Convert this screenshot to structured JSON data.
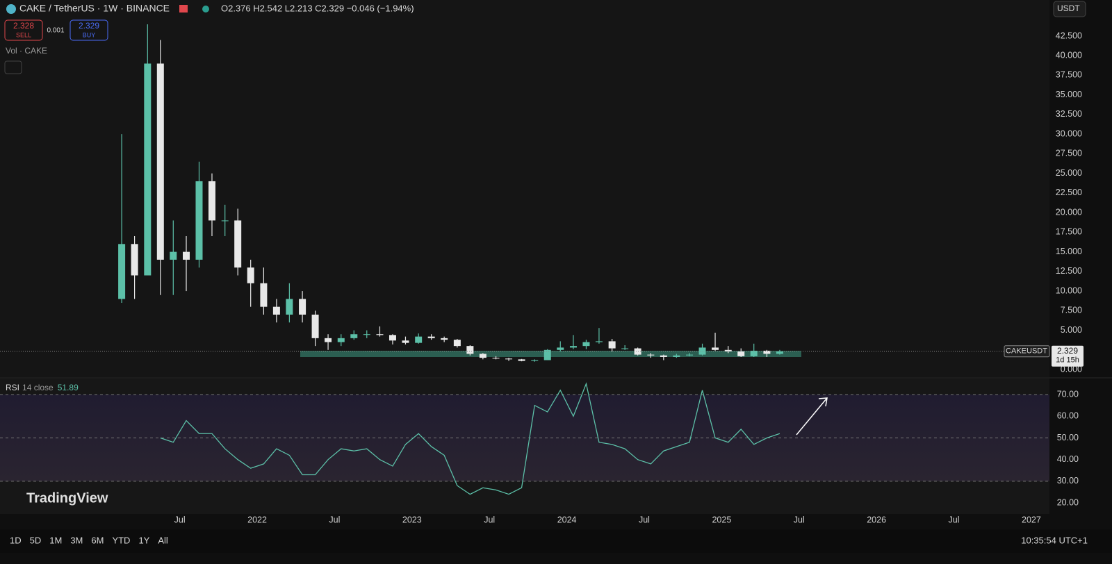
{
  "header": {
    "symbol": "CAKE / TetherUS · 1W · BINANCE",
    "ohlc": "O2.376 H2.542 L2.213 C2.329 −0.046 (−1.94%)",
    "sell_price": "2.328",
    "sell": "SELL",
    "spread": "0.001",
    "buy_price": "2.329",
    "buy": "BUY",
    "volume_label": "Vol · CAKE",
    "currency": "USDT"
  },
  "watermark": "TradingView",
  "toolbar": {
    "ranges": [
      "1D",
      "5D",
      "1M",
      "3M",
      "6M",
      "YTD",
      "1Y",
      "All"
    ],
    "clock": "10:35:54 UTC+1"
  },
  "chart_data": [
    {
      "type": "candlestick",
      "up_color": "#5cc0a8",
      "down_color": "#e8e8e8",
      "x": [
        2021.125,
        2021.208,
        2021.292,
        2021.375,
        2021.458,
        2021.542,
        2021.625,
        2021.708,
        2021.792,
        2021.875,
        2021.958,
        2022.042,
        2022.125,
        2022.208,
        2022.292,
        2022.375,
        2022.458,
        2022.542,
        2022.625,
        2022.708,
        2022.792,
        2022.875,
        2022.958,
        2023.042,
        2023.125,
        2023.208,
        2023.292,
        2023.375,
        2023.458,
        2023.542,
        2023.625,
        2023.708,
        2023.792,
        2023.875,
        2023.958,
        2024.042,
        2024.125,
        2024.208,
        2024.292,
        2024.375,
        2024.458,
        2024.542,
        2024.625,
        2024.708,
        2024.792,
        2024.875,
        2024.958,
        2025.042,
        2025.125,
        2025.208,
        2025.292,
        2025.375
      ],
      "open": [
        9,
        16,
        12,
        39,
        14,
        15,
        14,
        24,
        19,
        19,
        13,
        11,
        8,
        7,
        9,
        7,
        4,
        3.5,
        4,
        4.5,
        4.5,
        4.4,
        3.7,
        3.4,
        4.2,
        4.0,
        3.8,
        3.0,
        2.0,
        1.5,
        1.4,
        1.3,
        1.1,
        1.2,
        2.5,
        2.8,
        3.0,
        3.5,
        3.6,
        2.7,
        2.7,
        1.9,
        1.8,
        1.6,
        1.8,
        1.9,
        2.8,
        2.5,
        2.3,
        1.7,
        2.4,
        2.0
      ],
      "high": [
        30,
        17,
        44,
        42,
        19,
        17,
        26.5,
        25,
        21,
        20.5,
        14,
        13,
        9,
        11,
        10,
        7.5,
        4.5,
        4.5,
        5,
        5,
        5.5,
        4.5,
        4.2,
        4.6,
        4.5,
        4.2,
        3.9,
        3.1,
        2.1,
        1.7,
        1.5,
        1.35,
        1.3,
        2.6,
        3.6,
        4.4,
        3.8,
        5.3,
        3.9,
        3.1,
        2.8,
        2.1,
        1.9,
        2.0,
        2.1,
        3.3,
        4.7,
        3.0,
        2.7,
        3.3,
        2.5,
        2.5
      ],
      "low": [
        8.5,
        9,
        12,
        9.5,
        9.5,
        10,
        13,
        17,
        17,
        12,
        8,
        7,
        6,
        6,
        6,
        3,
        2.5,
        3,
        3.8,
        4,
        4.2,
        3.2,
        3.2,
        3.3,
        3.8,
        3.5,
        2.8,
        1.8,
        1.3,
        1.3,
        1.1,
        1.05,
        1.0,
        1.2,
        2.3,
        2.6,
        2.6,
        3.3,
        2.3,
        2.5,
        1.8,
        1.5,
        1.2,
        1.5,
        1.7,
        1.8,
        2.4,
        2.1,
        1.6,
        1.6,
        1.6,
        1.9
      ],
      "close": [
        16,
        12,
        39,
        14,
        15,
        14,
        24,
        19,
        19,
        13,
        11,
        8,
        7,
        9,
        7,
        4,
        3.5,
        4,
        4.5,
        4.5,
        4.4,
        3.7,
        3.4,
        4.2,
        4.0,
        3.8,
        3.0,
        2.0,
        1.5,
        1.4,
        1.3,
        1.1,
        1.2,
        2.5,
        2.8,
        3.0,
        3.5,
        3.6,
        2.7,
        2.7,
        1.9,
        1.8,
        1.6,
        1.8,
        1.9,
        2.8,
        2.5,
        2.3,
        1.7,
        2.4,
        2.0,
        2.3
      ],
      "xlim": [
        2020.339,
        2027.117
      ],
      "ylim": [
        -0.97,
        47.1
      ],
      "yticks": [
        {
          "value": 0,
          "label": "0.000"
        },
        {
          "value": 5,
          "label": "5.000"
        },
        {
          "value": 7.5,
          "label": "7.500"
        },
        {
          "value": 10,
          "label": "10.000"
        },
        {
          "value": 12.5,
          "label": "12.500"
        },
        {
          "value": 15,
          "label": "15.000"
        },
        {
          "value": 17.5,
          "label": "17.500"
        },
        {
          "value": 20,
          "label": "20.000"
        },
        {
          "value": 22.5,
          "label": "22.500"
        },
        {
          "value": 25,
          "label": "25.000"
        },
        {
          "value": 27.5,
          "label": "27.500"
        },
        {
          "value": 30,
          "label": "30.000"
        },
        {
          "value": 32.5,
          "label": "32.500"
        },
        {
          "value": 35,
          "label": "35.000"
        },
        {
          "value": 37.5,
          "label": "37.500"
        },
        {
          "value": 40,
          "label": "40.000"
        },
        {
          "value": 42.5,
          "label": "42.500"
        }
      ],
      "last_price": {
        "symbol": "CAKEUSDT",
        "value": 2.329,
        "countdown": "1d 15h"
      }
    },
    {
      "type": "line",
      "title": "RSI",
      "subtitle": "14 close",
      "current_value": 51.89,
      "color": "#5cc0a8",
      "x": [
        2021.375,
        2021.458,
        2021.542,
        2021.625,
        2021.708,
        2021.792,
        2021.875,
        2021.958,
        2022.042,
        2022.125,
        2022.208,
        2022.292,
        2022.375,
        2022.458,
        2022.542,
        2022.625,
        2022.708,
        2022.792,
        2022.875,
        2022.958,
        2023.042,
        2023.125,
        2023.208,
        2023.292,
        2023.375,
        2023.458,
        2023.542,
        2023.625,
        2023.708,
        2023.792,
        2023.875,
        2023.958,
        2024.042,
        2024.125,
        2024.208,
        2024.292,
        2024.375,
        2024.458,
        2024.542,
        2024.625,
        2024.708,
        2024.792,
        2024.875,
        2024.958,
        2025.042,
        2025.125,
        2025.208,
        2025.292,
        2025.375
      ],
      "values": [
        50,
        48,
        58,
        52,
        52,
        45,
        40,
        36,
        38,
        45,
        42,
        33,
        33,
        40,
        45,
        44,
        45,
        40,
        37,
        47,
        52,
        46,
        42,
        28,
        24,
        27,
        26,
        24,
        27,
        65,
        62,
        72,
        60,
        75,
        48,
        47,
        45,
        40,
        38,
        44,
        46,
        48,
        72,
        50,
        48,
        54,
        47,
        50,
        52
      ],
      "levels": [
        30,
        50,
        70
      ],
      "xlim": [
        2020.339,
        2027.117
      ],
      "ylim": [
        14.9,
        77.4
      ],
      "yticks": [
        {
          "value": 20,
          "label": "20.00"
        },
        {
          "value": 30,
          "label": "30.00"
        },
        {
          "value": 40,
          "label": "40.00"
        },
        {
          "value": 50,
          "label": "50.00"
        },
        {
          "value": 60,
          "label": "60.00"
        },
        {
          "value": 70,
          "label": "70.00"
        }
      ],
      "xticks": [
        {
          "value": 2021.5,
          "label": "Jul"
        },
        2022,
        {
          "value": 2022.5,
          "label": "Jul"
        },
        2023,
        {
          "value": 2023.5,
          "label": "Jul"
        },
        2024,
        {
          "value": 2024.5,
          "label": "Jul"
        },
        2025,
        {
          "value": 2025.5,
          "label": "Jul"
        },
        2026,
        {
          "value": 2026.5,
          "label": "Jul"
        },
        2027
      ]
    }
  ]
}
